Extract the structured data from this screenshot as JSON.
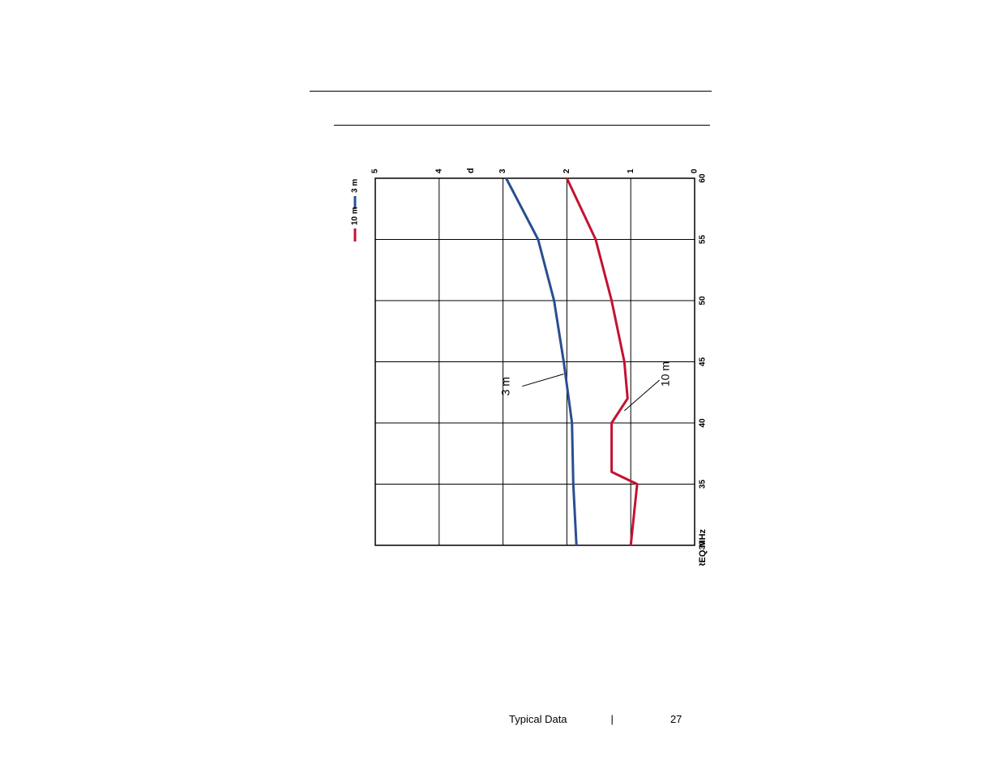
{
  "document": {
    "footer_title": "Typical Data",
    "page_number": "27"
  },
  "chart": {
    "type": "line",
    "background_color": "#ffffff",
    "plot_border_color": "#000000",
    "plot_border_width": 1.5,
    "grid_color": "#000000",
    "grid_width": 1,
    "aspect_ratio": "455x490",
    "rotation_deg": 90,
    "x_axis": {
      "label": "FREQ MHz",
      "label_fontsize": 11,
      "label_fontweight": "bold",
      "min": 30,
      "max": 60,
      "ticks": [
        30,
        35,
        40,
        45,
        50,
        55,
        60
      ],
      "tick_fontsize": 10,
      "tick_fontweight": "bold"
    },
    "y_axis": {
      "label": "dB",
      "label_fontsize": 11,
      "label_fontweight": "bold",
      "min": 0,
      "max": 5,
      "ticks": [
        0,
        1,
        2,
        3,
        4,
        5
      ],
      "tick_fontsize": 10,
      "tick_fontweight": "bold"
    },
    "series": [
      {
        "name": "3 m",
        "color": "#284f90",
        "line_width": 3,
        "x": [
          30,
          35,
          40,
          45,
          50,
          55,
          60
        ],
        "y": [
          1.85,
          1.9,
          1.92,
          2.05,
          2.2,
          2.45,
          2.95
        ],
        "inline_label": "3 m",
        "inline_label_x": 43,
        "inline_label_y": 2.9,
        "leader_from_x": 43,
        "leader_from_y": 2.7,
        "leader_to_x": 44,
        "leader_to_y": 2.05
      },
      {
        "name": "10 m",
        "color": "#c41230",
        "line_width": 3,
        "x": [
          30,
          35,
          36,
          40,
          42,
          45,
          50,
          55,
          60
        ],
        "y": [
          1.0,
          0.9,
          1.3,
          1.3,
          1.05,
          1.1,
          1.3,
          1.55,
          2.0
        ],
        "inline_label": "10 m",
        "inline_label_x": 44,
        "inline_label_y": 0.4,
        "leader_from_x": 43.5,
        "leader_from_y": 0.55,
        "leader_to_x": 41,
        "leader_to_y": 1.1
      }
    ],
    "legend": {
      "items": [
        {
          "name": "3 m",
          "color": "#284f90",
          "swatch_length": 16,
          "swatch_width": 3
        },
        {
          "name": "10 m",
          "color": "#c41230",
          "swatch_length": 16,
          "swatch_width": 3
        }
      ],
      "fontsize": 10,
      "fontweight": "bold",
      "position": "top-right-of-rotated-plot"
    },
    "inline_label_fontsize": 14,
    "inline_label_color": "#000000",
    "leader_line_width": 1
  }
}
